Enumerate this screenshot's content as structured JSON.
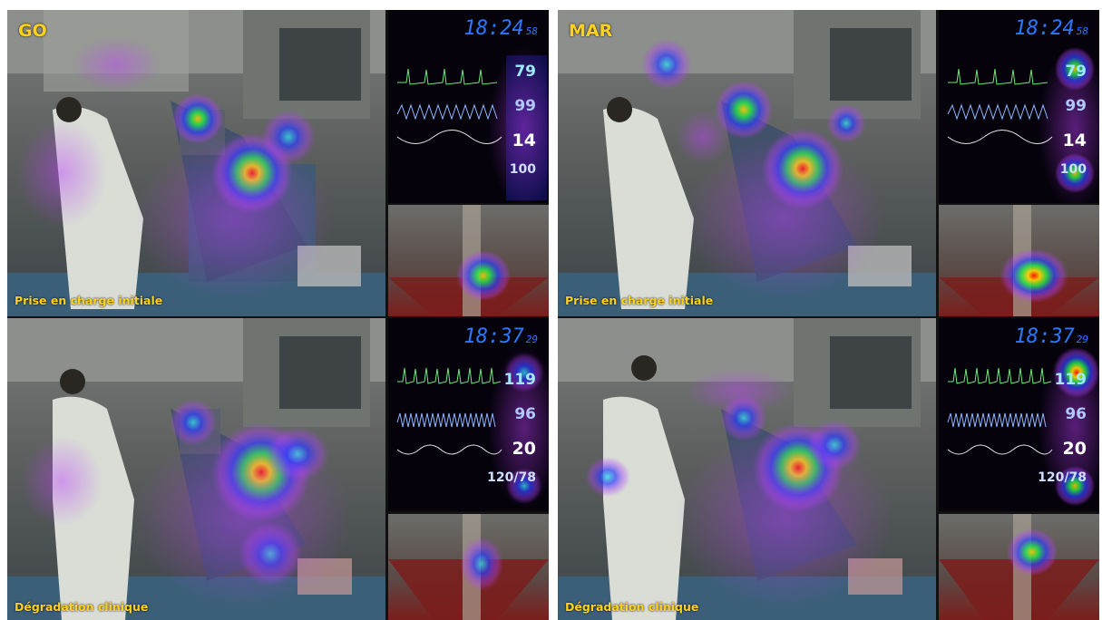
{
  "panels": [
    {
      "title": "GO",
      "top": {
        "label": "Prise en charge initiale",
        "clock": {
          "hm": "18:24",
          "sec": "58"
        },
        "vitals": [
          "79",
          "99",
          "14",
          "100"
        ]
      },
      "bottom": {
        "label": "Dégradation clinique",
        "clock": {
          "hm": "18:37",
          "sec": "29"
        },
        "vitals": [
          "119",
          "96",
          "20",
          "120/78"
        ]
      }
    },
    {
      "title": "MAR",
      "top": {
        "label": "Prise en charge initiale",
        "clock": {
          "hm": "18:24",
          "sec": "58"
        },
        "vitals": [
          "79",
          "99",
          "14",
          "100"
        ]
      },
      "bottom": {
        "label": "Dégradation clinique",
        "clock": {
          "hm": "18:37",
          "sec": "29"
        },
        "vitals": [
          "119",
          "96",
          "20",
          "120/78"
        ]
      }
    }
  ],
  "colors": {
    "label": "#ffd21a",
    "clock": "#2c78ff",
    "heat_core": "#ff2a00",
    "heat_mid": "#19e24b",
    "heat_outer": "#2b3cff",
    "heat_halo": "#c040ff"
  }
}
